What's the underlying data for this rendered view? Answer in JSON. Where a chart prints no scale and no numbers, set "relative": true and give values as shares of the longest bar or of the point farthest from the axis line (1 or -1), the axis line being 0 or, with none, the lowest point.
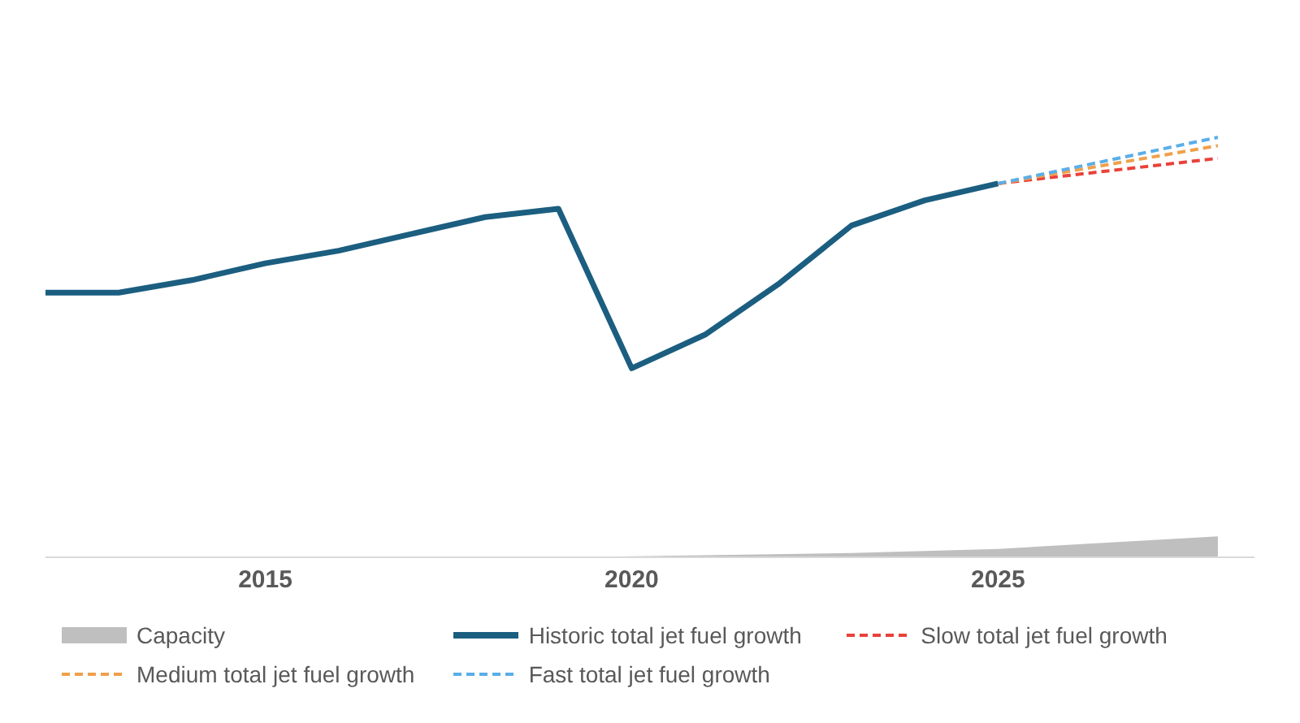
{
  "chart_data": {
    "type": "line",
    "relative": true,
    "xlim": [
      2012,
      2028.5
    ],
    "xticks": [
      2015,
      2020,
      2025
    ],
    "grid": false,
    "legend": "bottom",
    "marker": "none",
    "series": [
      {
        "name": "Capacity",
        "type": "area",
        "color": "#bfbfbf",
        "x": [
          2019,
          2021,
          2023,
          2025,
          2028
        ],
        "values": [
          0,
          0.005,
          0.01,
          0.02,
          0.05
        ]
      },
      {
        "name": "Historic total jet fuel growth",
        "color": "#1b5e80",
        "line_style": "solid",
        "x": [
          2012,
          2013,
          2014,
          2015,
          2016,
          2017,
          2018,
          2019,
          2020,
          2021,
          2022,
          2023,
          2024,
          2025
        ],
        "values": [
          0.63,
          0.63,
          0.66,
          0.7,
          0.73,
          0.77,
          0.81,
          0.83,
          0.45,
          0.53,
          0.65,
          0.79,
          0.85,
          0.89
        ]
      },
      {
        "name": "Slow total jet fuel growth",
        "color": "#e8423a",
        "line_style": "dashed",
        "x": [
          2025,
          2028
        ],
        "values": [
          0.89,
          0.95
        ]
      },
      {
        "name": "Medium total jet fuel growth",
        "color": "#f0a04b",
        "line_style": "dashed",
        "x": [
          2025,
          2028
        ],
        "values": [
          0.89,
          0.98
        ]
      },
      {
        "name": "Fast total jet fuel growth",
        "color": "#5aaee8",
        "line_style": "dashed",
        "x": [
          2025,
          2028
        ],
        "values": [
          0.89,
          1
        ]
      }
    ]
  }
}
